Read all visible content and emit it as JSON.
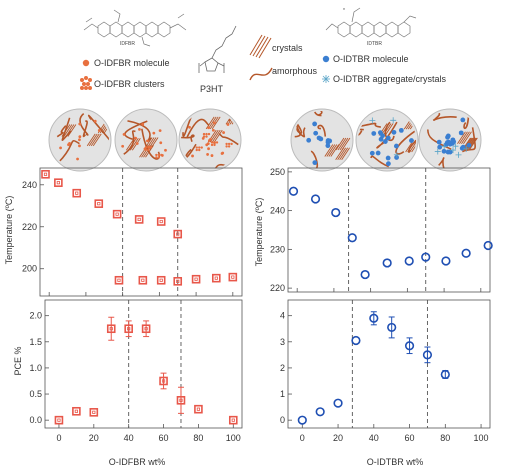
{
  "colors": {
    "ifbr": "#e8574a",
    "idtbr": "#1f4fb3",
    "chain": "#b5572a",
    "axis": "#555555",
    "dash": "#555555"
  },
  "legend": {
    "ifbr_molecule": "O-IDFBR molecule",
    "ifbr_clusters": "O-IDFBR clusters",
    "p3ht": "P3HT",
    "crystals": "crystals",
    "amorphous": "amorphous",
    "idtbr_molecule": "O-IDTBR molecule",
    "idtbr_aggregate": "O-IDTBR aggregate/crystals",
    "ifbr_structure_label": "IDFBR",
    "idtbr_structure_label": "IDTBR",
    "asterisk": "*"
  },
  "chart_data": [
    {
      "id": "tl",
      "type": "scatter",
      "marker": "square",
      "color_key": "ifbr",
      "xlabel": "",
      "ylabel": "Temperature (ºC)",
      "xlim": [
        -5,
        105
      ],
      "ylim": [
        187,
        248
      ],
      "yticks": [
        200,
        220,
        240
      ],
      "xticks": [
        0,
        20,
        40,
        60,
        80,
        100
      ],
      "show_xtick_labels": false,
      "dashed_x": [
        40,
        70
      ],
      "series": [
        {
          "values": [
            [
              -2,
              245
            ],
            [
              5,
              241
            ],
            [
              15,
              236
            ],
            [
              27,
              231
            ],
            [
              37,
              226
            ],
            [
              49,
              223.5
            ],
            [
              61,
              222.5
            ],
            [
              70,
              216.5
            ]
          ]
        },
        {
          "values": [
            [
              38,
              194.5
            ],
            [
              51,
              194.5
            ],
            [
              61,
              194.5
            ],
            [
              70,
              194
            ],
            [
              80,
              195
            ],
            [
              91,
              195.5
            ],
            [
              100,
              196
            ]
          ]
        }
      ]
    },
    {
      "id": "tr",
      "type": "scatter",
      "marker": "circle",
      "color_key": "idtbr",
      "xlabel": "",
      "ylabel": "Temperature (ºC)",
      "xlim": [
        -5,
        105
      ],
      "ylim": [
        219,
        251
      ],
      "yticks": [
        220,
        230,
        240,
        250
      ],
      "xticks": [
        0,
        20,
        40,
        60,
        80,
        100
      ],
      "show_xtick_labels": false,
      "dashed_x": [
        28,
        70
      ],
      "series": [
        {
          "values": [
            [
              -2,
              245
            ],
            [
              10,
              243
            ],
            [
              21,
              239.5
            ],
            [
              30,
              233
            ],
            [
              37,
              223.5
            ],
            [
              49,
              226.5
            ],
            [
              61,
              227
            ],
            [
              70,
              228
            ],
            [
              81,
              227
            ],
            [
              92,
              229
            ],
            [
              104,
              231
            ]
          ]
        }
      ]
    },
    {
      "id": "bl",
      "type": "scatter",
      "marker": "square",
      "color_key": "ifbr",
      "xlabel": "O-IDFBR wt%",
      "ylabel": "PCE %",
      "xlim": [
        -8,
        105
      ],
      "ylim": [
        -0.15,
        2.3
      ],
      "yticks": [
        0.0,
        0.5,
        1.0,
        1.5,
        2.0
      ],
      "ytick_labels": [
        "0.0",
        "0.5",
        "1.0",
        "1.5",
        "2.0"
      ],
      "xticks": [
        0,
        20,
        40,
        60,
        80,
        100
      ],
      "show_xtick_labels": true,
      "dashed_x": [
        40,
        70
      ],
      "series": [
        {
          "values": [
            [
              0,
              0.0,
              0.0
            ],
            [
              10,
              0.17,
              0.0
            ],
            [
              20,
              0.15,
              0.0
            ],
            [
              30,
              1.75,
              0.22
            ],
            [
              40,
              1.75,
              0.15
            ],
            [
              50,
              1.75,
              0.15
            ],
            [
              60,
              0.75,
              0.15
            ],
            [
              70,
              0.38,
              0.25
            ],
            [
              80,
              0.21,
              0.0
            ],
            [
              100,
              0.0,
              0.0
            ]
          ]
        }
      ]
    },
    {
      "id": "br",
      "type": "scatter",
      "marker": "circle",
      "color_key": "idtbr",
      "xlabel": "O-IDTBR wt%",
      "ylabel": "",
      "xlim": [
        -8,
        105
      ],
      "ylim": [
        -0.3,
        4.6
      ],
      "yticks": [
        0,
        1,
        2,
        3,
        4
      ],
      "ytick_labels": [
        "0",
        "1",
        "2",
        "3",
        "4"
      ],
      "xticks": [
        0,
        20,
        40,
        60,
        80,
        100
      ],
      "show_xtick_labels": true,
      "dashed_x": [
        28,
        70
      ],
      "series": [
        {
          "values": [
            [
              0,
              0.0,
              0.0
            ],
            [
              10,
              0.32,
              0.0
            ],
            [
              20,
              0.65,
              0.0
            ],
            [
              30,
              3.05,
              0.0
            ],
            [
              40,
              3.9,
              0.25
            ],
            [
              50,
              3.55,
              0.4
            ],
            [
              60,
              2.85,
              0.3
            ],
            [
              70,
              2.5,
              0.3
            ],
            [
              80,
              1.75,
              0.15
            ]
          ]
        }
      ]
    }
  ]
}
